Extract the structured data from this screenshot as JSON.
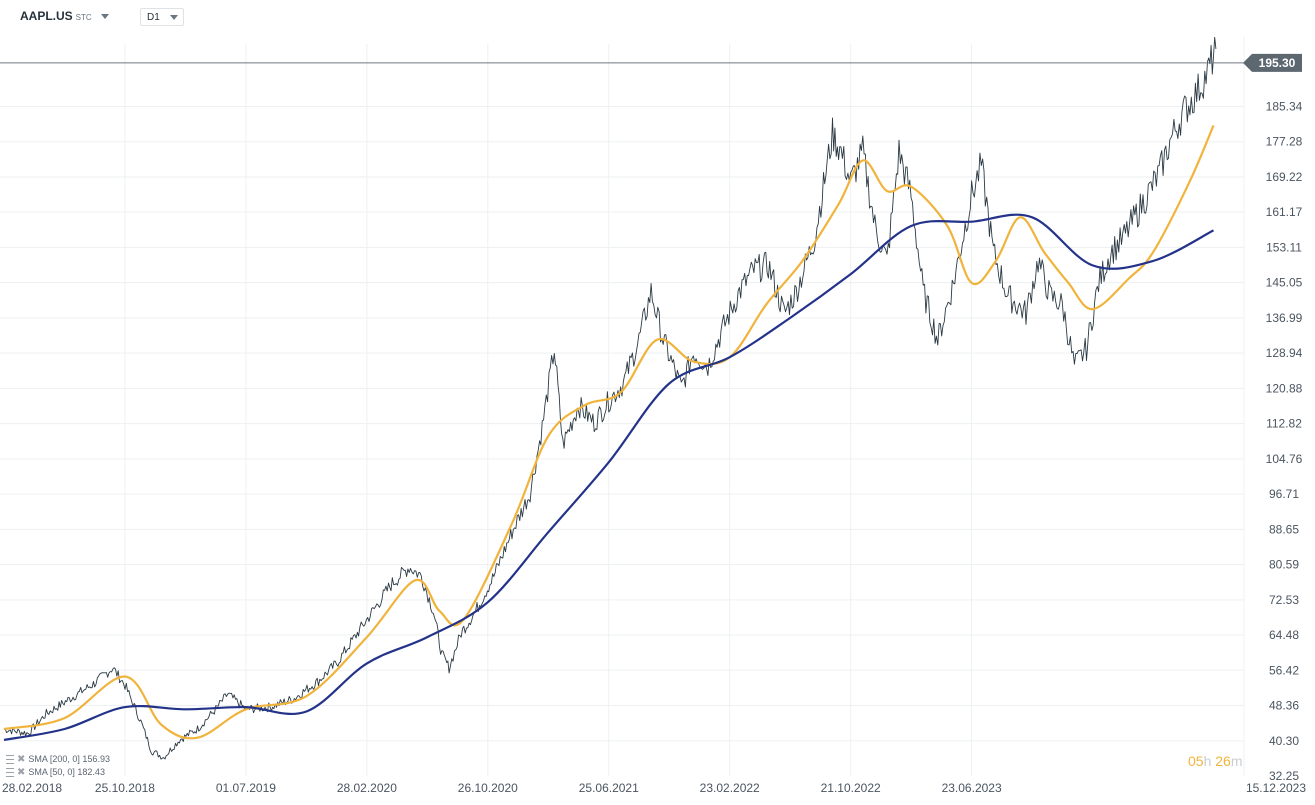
{
  "toolbar": {
    "symbol": "AAPL.US",
    "symbol_suffix": "STC",
    "timeframe": "D1"
  },
  "countdown": {
    "hours": "05",
    "hours_unit": "h",
    "minutes": "26",
    "minutes_unit": "m"
  },
  "indicators": [
    {
      "label": "SMA [200,  0] 156.93"
    },
    {
      "label": "SMA [50,  0] 182.43"
    }
  ],
  "chart_data": {
    "type": "line",
    "series": [
      {
        "values": [
          [
            0,
            43.0
          ],
          [
            0.2,
            42.0
          ],
          [
            0.35,
            46.5
          ],
          [
            0.55,
            50.0
          ],
          [
            0.75,
            53.5
          ],
          [
            0.9,
            57.0
          ],
          [
            1.0,
            53.0
          ],
          [
            1.12,
            45.5
          ],
          [
            1.22,
            38.0
          ],
          [
            1.32,
            36.5
          ],
          [
            1.45,
            40.5
          ],
          [
            1.6,
            43.0
          ],
          [
            1.75,
            47.5
          ],
          [
            1.85,
            51.0
          ],
          [
            2.0,
            47.5
          ],
          [
            2.2,
            48.0
          ],
          [
            2.4,
            50.0
          ],
          [
            2.6,
            54.0
          ],
          [
            2.75,
            58.0
          ],
          [
            2.9,
            64.0
          ],
          [
            3.05,
            70.0
          ],
          [
            3.2,
            76.0
          ],
          [
            3.35,
            80.0
          ],
          [
            3.45,
            78.0
          ],
          [
            3.55,
            70.0
          ],
          [
            3.62,
            60.0
          ],
          [
            3.68,
            57.0
          ],
          [
            3.78,
            65.0
          ],
          [
            3.9,
            70.0
          ],
          [
            4.05,
            78.0
          ],
          [
            4.2,
            88.0
          ],
          [
            4.35,
            97.0
          ],
          [
            4.45,
            112.0
          ],
          [
            4.55,
            130.0
          ],
          [
            4.62,
            108.0
          ],
          [
            4.75,
            117.0
          ],
          [
            4.88,
            113.0
          ],
          [
            5.0,
            118.0
          ],
          [
            5.12,
            122.0
          ],
          [
            5.25,
            132.0
          ],
          [
            5.35,
            143.0
          ],
          [
            5.45,
            132.0
          ],
          [
            5.6,
            121.0
          ],
          [
            5.7,
            129.0
          ],
          [
            5.82,
            126.0
          ],
          [
            5.95,
            135.0
          ],
          [
            6.08,
            143.0
          ],
          [
            6.2,
            148.0
          ],
          [
            6.32,
            149.0
          ],
          [
            6.45,
            138.0
          ],
          [
            6.55,
            143.0
          ],
          [
            6.7,
            155.0
          ],
          [
            6.85,
            179.0
          ],
          [
            6.92,
            175.0
          ],
          [
            7.0,
            168.0
          ],
          [
            7.1,
            175.0
          ],
          [
            7.2,
            158.0
          ],
          [
            7.3,
            150.0
          ],
          [
            7.4,
            175.0
          ],
          [
            7.5,
            165.0
          ],
          [
            7.6,
            143.0
          ],
          [
            7.72,
            132.0
          ],
          [
            7.85,
            145.0
          ],
          [
            8.0,
            165.0
          ],
          [
            8.08,
            172.0
          ],
          [
            8.18,
            152.0
          ],
          [
            8.3,
            142.0
          ],
          [
            8.45,
            138.0
          ],
          [
            8.55,
            150.0
          ],
          [
            8.65,
            142.0
          ],
          [
            8.75,
            140.0
          ],
          [
            8.85,
            126.0
          ],
          [
            8.95,
            130.0
          ],
          [
            9.05,
            145.0
          ],
          [
            9.15,
            152.0
          ],
          [
            9.25,
            155.0
          ],
          [
            9.35,
            160.0
          ],
          [
            9.45,
            165.0
          ],
          [
            9.55,
            170.0
          ],
          [
            9.65,
            178.0
          ],
          [
            9.75,
            184.0
          ],
          [
            9.85,
            188.0
          ],
          [
            9.95,
            193.0
          ],
          [
            10.02,
            198.5
          ]
        ]
      },
      {
        "values": [
          [
            0,
            43.0
          ],
          [
            0.5,
            45.5
          ],
          [
            1.0,
            55.0
          ],
          [
            1.3,
            44.0
          ],
          [
            1.6,
            41.0
          ],
          [
            2.0,
            47.5
          ],
          [
            2.5,
            50.5
          ],
          [
            3.0,
            64.0
          ],
          [
            3.4,
            77.0
          ],
          [
            3.6,
            70.0
          ],
          [
            3.8,
            68.0
          ],
          [
            4.2,
            90.0
          ],
          [
            4.5,
            110.0
          ],
          [
            4.8,
            117.0
          ],
          [
            5.1,
            120.0
          ],
          [
            5.4,
            132.0
          ],
          [
            5.7,
            127.0
          ],
          [
            6.0,
            128.0
          ],
          [
            6.3,
            140.0
          ],
          [
            6.6,
            150.0
          ],
          [
            6.9,
            163.0
          ],
          [
            7.1,
            173.0
          ],
          [
            7.3,
            166.0
          ],
          [
            7.5,
            167.0
          ],
          [
            7.8,
            158.0
          ],
          [
            8.0,
            145.0
          ],
          [
            8.2,
            150.0
          ],
          [
            8.4,
            160.0
          ],
          [
            8.6,
            152.0
          ],
          [
            8.8,
            145.0
          ],
          [
            9.0,
            139.0
          ],
          [
            9.3,
            146.0
          ],
          [
            9.5,
            152.0
          ],
          [
            9.8,
            168.0
          ],
          [
            10.0,
            181.0
          ]
        ]
      },
      {
        "values": [
          [
            0,
            40.5
          ],
          [
            0.5,
            43.0
          ],
          [
            1.0,
            48.0
          ],
          [
            1.5,
            47.5
          ],
          [
            2.0,
            48.0
          ],
          [
            2.5,
            47.0
          ],
          [
            3.0,
            58.0
          ],
          [
            3.5,
            64.0
          ],
          [
            4.0,
            72.0
          ],
          [
            4.5,
            88.0
          ],
          [
            5.0,
            104.0
          ],
          [
            5.5,
            122.0
          ],
          [
            6.0,
            128.0
          ],
          [
            6.5,
            137.0
          ],
          [
            7.0,
            147.0
          ],
          [
            7.5,
            158.0
          ],
          [
            8.0,
            159.0
          ],
          [
            8.5,
            160.0
          ],
          [
            9.0,
            149.0
          ],
          [
            9.5,
            150.0
          ],
          [
            10.0,
            157.0
          ]
        ]
      }
    ],
    "x_tick_labels": [
      "28.02.2018",
      "25.10.2018",
      "01.07.2019",
      "28.02.2020",
      "26.10.2020",
      "25.06.2021",
      "23.02.2022",
      "21.10.2022",
      "23.06.2023",
      "15.12.2023"
    ],
    "y_tick_labels": [
      32.25,
      40.3,
      48.36,
      56.42,
      64.48,
      72.53,
      80.59,
      88.65,
      96.71,
      104.76,
      112.82,
      120.88,
      128.94,
      136.99,
      145.05,
      153.11,
      161.17,
      169.22,
      177.28,
      185.34
    ],
    "ylim": [
      32.25,
      201.45
    ],
    "xlim": [
      0,
      10.5
    ],
    "last_price": 195.3,
    "last_price_label": "195.30",
    "grid": true,
    "colors": {
      "price": "#2b3a44",
      "sma50": "#f0b43c",
      "sma200": "#24338a",
      "price_tag": "#5d6770",
      "grid": "#edf0f2",
      "axis_text": "#4a5560"
    }
  }
}
